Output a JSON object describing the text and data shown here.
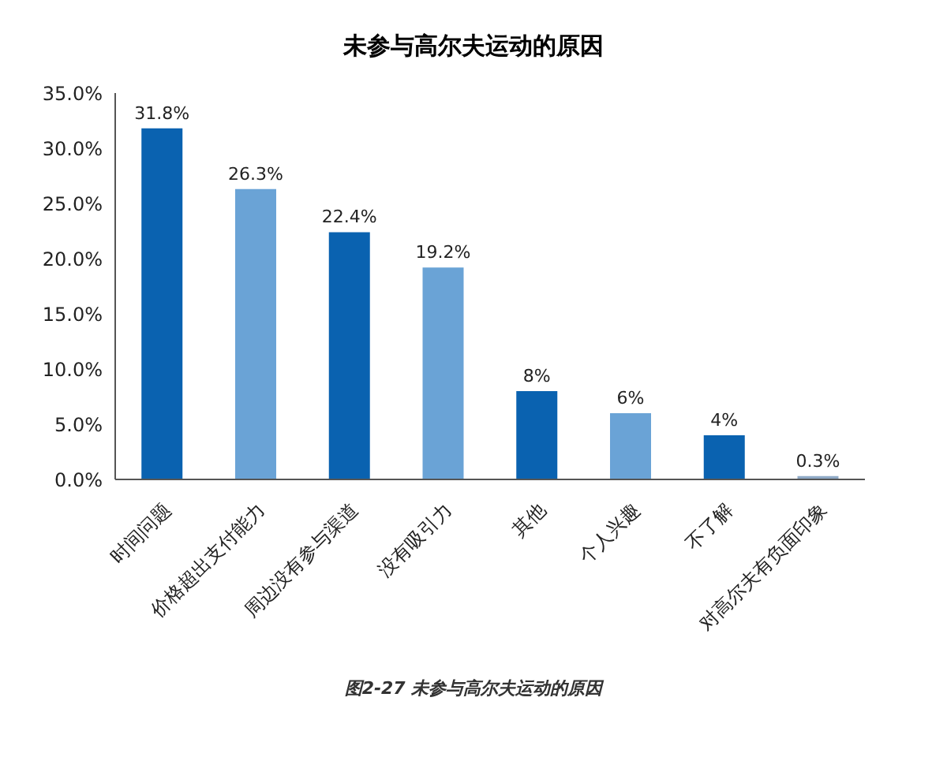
{
  "chart_data": {
    "type": "bar",
    "title": "未参与高尔夫运动的原因",
    "categories": [
      "时间问题",
      "价格超出支付能力",
      "周边没有参与渠道",
      "没有吸引力",
      "其他",
      "个人兴趣",
      "不了解",
      "对高尔夫有负面印象"
    ],
    "values": [
      31.8,
      26.3,
      22.4,
      19.2,
      8,
      6,
      4,
      0.3
    ],
    "colors": [
      "#0a62b0",
      "#6aa3d6",
      "#0a62b0",
      "#6aa3d6",
      "#0a62b0",
      "#6aa3d6",
      "#0a62b0",
      "#8fa9c6"
    ],
    "value_labels": [
      "31.8%",
      "26.3%",
      "22.4%",
      "19.2%",
      "8%",
      "6%",
      "4%",
      "0.3%"
    ],
    "ylim": [
      0,
      35
    ],
    "yticks": [
      {
        "value": 0,
        "label": "0.0%"
      },
      {
        "value": 5,
        "label": "5.0%"
      },
      {
        "value": 10,
        "label": "10.0%"
      },
      {
        "value": 15,
        "label": "15.0%"
      },
      {
        "value": 20,
        "label": "20.0%"
      },
      {
        "value": 25,
        "label": "25.0%"
      },
      {
        "value": 30,
        "label": "30.0%"
      },
      {
        "value": 35,
        "label": "35.0%"
      }
    ],
    "grid": false,
    "annotations": [
      "图2-27 未参与高尔夫运动的原因"
    ]
  }
}
